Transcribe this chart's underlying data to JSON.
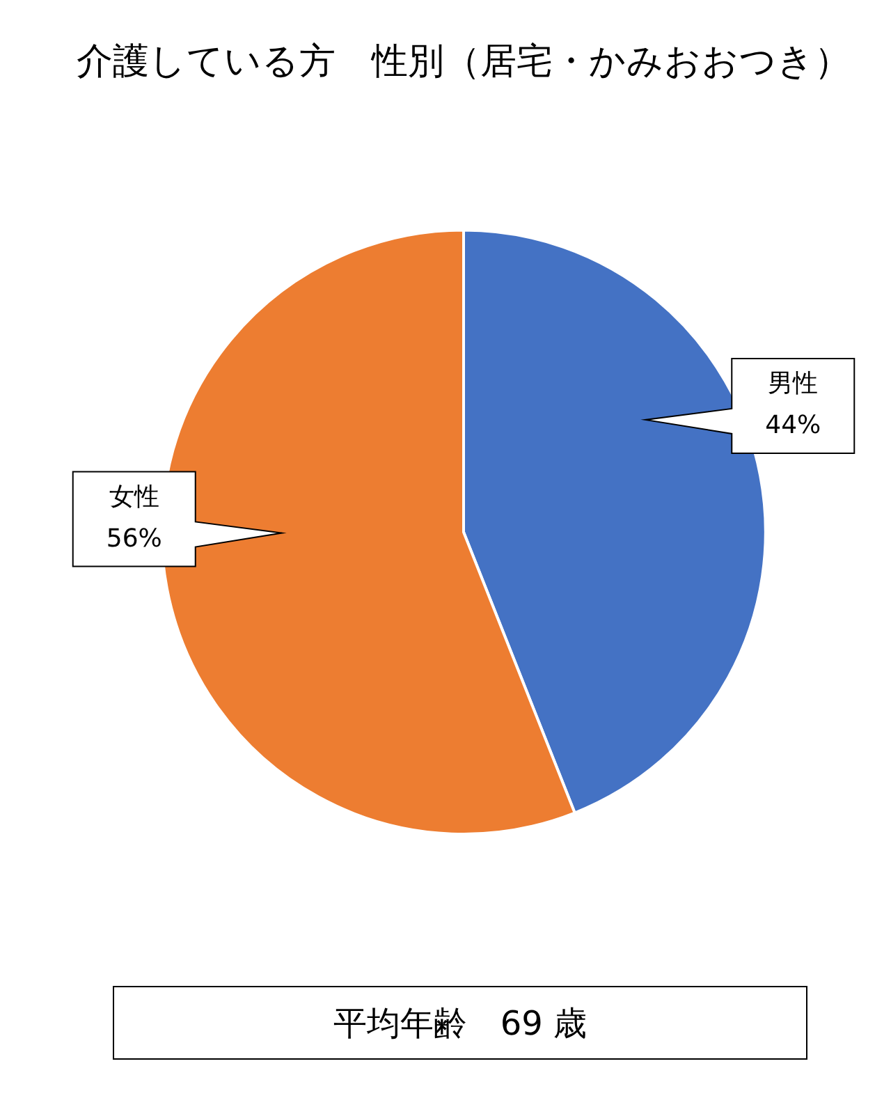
{
  "chart_data": {
    "type": "pie",
    "title": "介護している方　性別（居宅・かみおおつき）",
    "categories": [
      "男性",
      "女性"
    ],
    "values": [
      44,
      56
    ],
    "colors": [
      "#4472c4",
      "#ed7d31"
    ],
    "value_labels": [
      "44%",
      "56%"
    ],
    "legend": false,
    "annotations": [
      "平均年齢　69 歳"
    ]
  }
}
